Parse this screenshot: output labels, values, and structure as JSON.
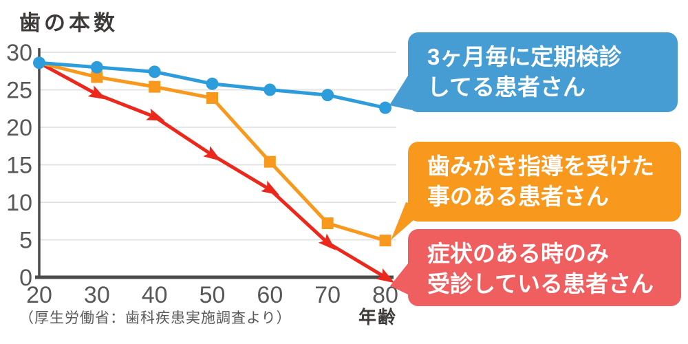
{
  "page": {
    "title": "歯の本数",
    "source_note": "（厚生労働省：歯科疾患実施調査より）",
    "x_axis_title": "年齢"
  },
  "chart_data": {
    "type": "line",
    "title": "歯の本数",
    "xlabel": "年齢",
    "ylabel": "歯の本数",
    "x": [
      20,
      30,
      40,
      50,
      60,
      70,
      80
    ],
    "xticks": [
      20,
      30,
      40,
      50,
      60,
      70,
      80
    ],
    "yticks": [
      0,
      5,
      10,
      15,
      20,
      25,
      30
    ],
    "ylim": [
      0,
      30
    ],
    "xlim": [
      20,
      80
    ],
    "grid": true,
    "legend_position": "right-callouts",
    "axis_color": "#4a4a4a",
    "grid_color": "#e4e4e4",
    "tick_label_color": "#595757",
    "series": [
      {
        "name": "3ヶ月毎に定期検診してる患者さん",
        "color": "#2d9cdb",
        "marker": "circle",
        "values": [
          28.6,
          28.0,
          27.4,
          25.8,
          25.0,
          24.3,
          22.6
        ]
      },
      {
        "name": "歯みがき指導を受けた事のある患者さん",
        "color": "#f8981d",
        "marker": "square",
        "values": [
          28.6,
          26.7,
          25.4,
          23.9,
          15.4,
          7.2,
          4.9
        ]
      },
      {
        "name": "症状のある時のみ受診している患者さん",
        "color": "#ec281c",
        "marker": "arrow",
        "values": [
          28.6,
          24.4,
          21.4,
          16.3,
          11.7,
          4.6,
          0.0
        ]
      }
    ]
  },
  "callouts": [
    {
      "line1": "3ヶ月毎に定期検診",
      "line2": "してる患者さん",
      "color": "#459dd4"
    },
    {
      "line1": "歯みがき指導を受けた",
      "line2": "事のある患者さん",
      "color": "#f8981d"
    },
    {
      "line1": "症状のある時のみ",
      "line2": "受診している患者さん",
      "color": "#ef5f60"
    }
  ]
}
